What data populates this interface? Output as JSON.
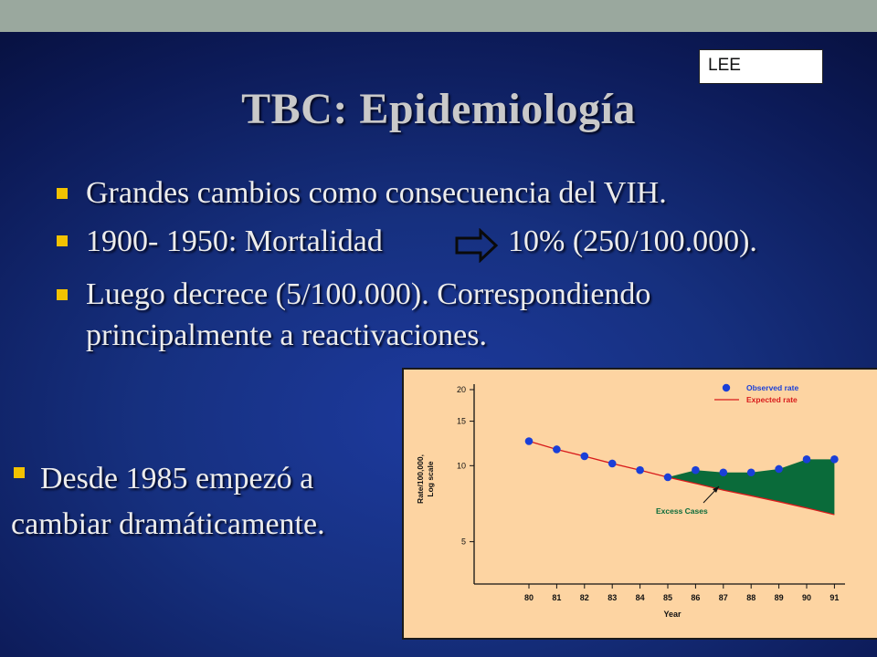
{
  "header": {
    "box_label": "LEE"
  },
  "slide": {
    "title": "TBC: Epidemiología",
    "bullets": [
      {
        "text": "Grandes cambios como consecuencia del VIH."
      },
      {
        "text_before_arrow": "1900- 1950: Mortalidad",
        "text_after_arrow": "10% (250/100.000)."
      },
      {
        "line1": "Luego decrece (5/100.000). Correspondiendo",
        "line2": "principalmente a reactivaciones."
      }
    ],
    "side_bullet": {
      "line1": "Desde 1985 empezó a",
      "line2": "cambiar dramáticamente."
    }
  },
  "colors": {
    "accent_bullet": "#f2c200",
    "chart_bg": "#fdd4a2",
    "observed": "#1a3fd8",
    "expected": "#d81b1b",
    "excess_fill": "#0a6b3a"
  },
  "chart_data": {
    "type": "line",
    "x_categories": [
      "80",
      "81",
      "82",
      "83",
      "84",
      "85",
      "86",
      "87",
      "88",
      "89",
      "90",
      "91"
    ],
    "xlabel": "Year",
    "ylabel_line1": "Rate/100,000,",
    "ylabel_line2": "Log scale",
    "y_scale": "log",
    "y_ticks": [
      5,
      10,
      15,
      20
    ],
    "ylim": [
      3.4,
      20
    ],
    "series": [
      {
        "name": "Observed rate",
        "kind": "points",
        "values": [
          12.5,
          11.6,
          10.9,
          10.2,
          9.6,
          9.0,
          9.6,
          9.4,
          9.4,
          9.7,
          10.6,
          10.6
        ]
      },
      {
        "name": "Expected rate",
        "kind": "line",
        "values": [
          12.5,
          11.6,
          10.9,
          10.2,
          9.6,
          9.0,
          8.5,
          8.0,
          7.6,
          7.2,
          6.8,
          6.4
        ]
      }
    ],
    "annotation": "Excess Cases",
    "legend_position": "top-right"
  }
}
